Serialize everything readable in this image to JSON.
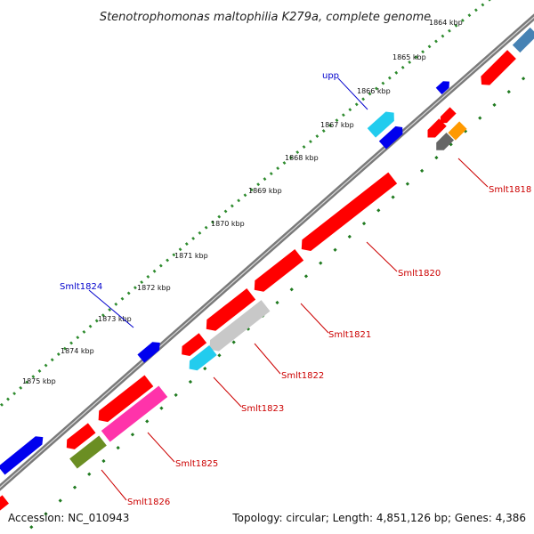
{
  "title": "Stenotrophomonas maltophilia K279a, complete genome",
  "accession": "Accession: NC_010943",
  "topology": "Topology: circular; Length: 4,851,126 bp; Genes: 4,386",
  "ticks": [
    "1864 kbp",
    "1865 kbp",
    "1866 kbp",
    "1867 kbp",
    "1868 kbp",
    "1869 kbp",
    "1870 kbp",
    "1871 kbp",
    "1872 kbp",
    "1873 kbp",
    "1874 kbp",
    "1875 kbp"
  ],
  "gene_labels": {
    "upp": "upp",
    "smlt1824": "Smlt1824",
    "smlt1818": "Smlt1818",
    "smlt1820": "Smlt1820",
    "smlt1821": "Smlt1821",
    "smlt1822": "Smlt1822",
    "smlt1823": "Smlt1823",
    "smlt1825": "Smlt1825",
    "smlt1826": "Smlt1826"
  },
  "colors": {
    "backbone": "#7a7a7a",
    "forward_dots": "#2e8b2e",
    "reverse_dashes": "#1f7a1f",
    "forward_label": "#0000cc",
    "reverse_label": "#cc0000",
    "red": "#ff0000",
    "blue": "#0000ee",
    "cyan": "#22ccee",
    "pink": "#ff33aa",
    "olive": "#6b8e23",
    "orange": "#ff9900",
    "grey_gene": "#666666",
    "light_grey_gene": "#c8c8c8",
    "steel": "#4682b4"
  }
}
